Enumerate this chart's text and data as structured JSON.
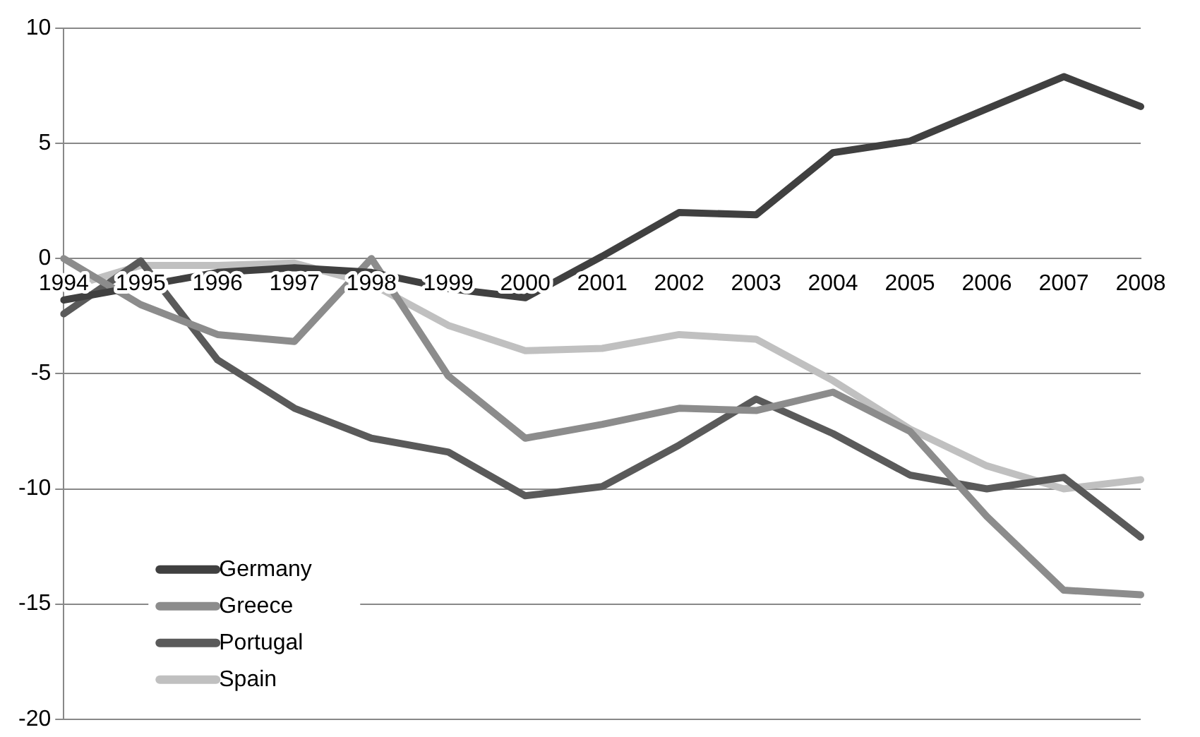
{
  "chart_data": {
    "type": "line",
    "categories": [
      "1994",
      "1995",
      "1996",
      "1997",
      "1998",
      "1999",
      "2000",
      "2001",
      "2002",
      "2003",
      "2004",
      "2005",
      "2006",
      "2007",
      "2008"
    ],
    "series": [
      {
        "name": "Germany",
        "color": "#404040",
        "values": [
          -1.8,
          -1.2,
          -0.6,
          -0.4,
          -0.6,
          -1.3,
          -1.7,
          0.1,
          2.0,
          1.9,
          4.6,
          5.1,
          6.5,
          7.9,
          6.6
        ]
      },
      {
        "name": "Greece",
        "color": "#8c8c8c",
        "values": [
          0,
          -2.0,
          -3.3,
          -3.6,
          0,
          -5.1,
          -7.8,
          -7.2,
          -6.5,
          -6.6,
          -5.8,
          -7.5,
          -11.2,
          -14.4,
          -14.6
        ]
      },
      {
        "name": "Portugal",
        "color": "#5a5a5a",
        "values": [
          -2.4,
          -0.1,
          -4.4,
          -6.5,
          -7.8,
          -8.4,
          -10.3,
          -9.9,
          -8.1,
          -6.1,
          -7.6,
          -9.4,
          -10.0,
          -9.5,
          -12.1
        ]
      },
      {
        "name": "Spain",
        "color": "#c0c0c0",
        "values": [
          -1.3,
          -0.3,
          -0.3,
          -0.2,
          -1.1,
          -2.9,
          -4.0,
          -3.9,
          -3.3,
          -3.5,
          -5.3,
          -7.4,
          -9.0,
          -10.0,
          -9.6
        ]
      }
    ],
    "ylim": [
      -20,
      10
    ],
    "yticks": [
      10,
      5,
      0,
      -5,
      -10,
      -15,
      -20
    ],
    "grid": "y",
    "legend": "bottom left",
    "marker": "none",
    "line_style": "solid"
  }
}
